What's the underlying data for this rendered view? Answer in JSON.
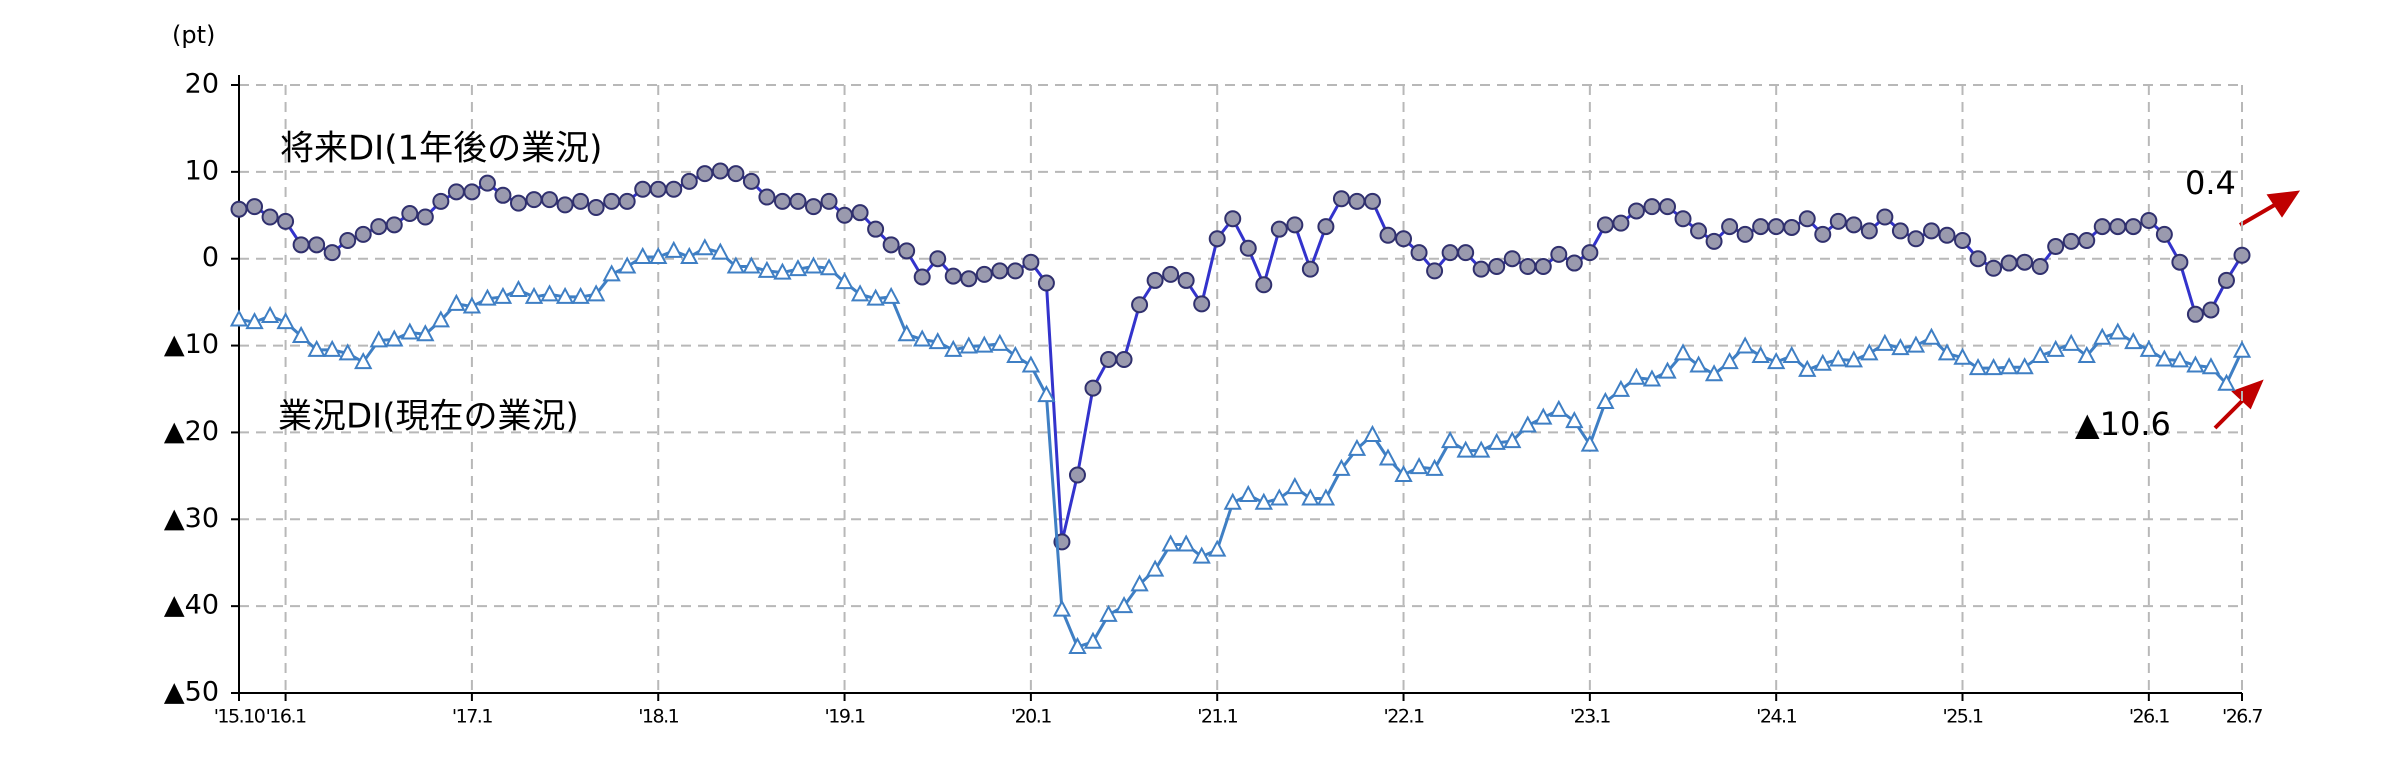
{
  "chart_data": {
    "type": "line",
    "y_unit": "(pt)",
    "categories": [
      "'15.10",
      null,
      null,
      "'16.1",
      null,
      null,
      null,
      null,
      null,
      null,
      null,
      null,
      null,
      null,
      null,
      "'17.1",
      null,
      null,
      null,
      null,
      null,
      null,
      null,
      null,
      null,
      null,
      null,
      "'18.1",
      null,
      null,
      null,
      null,
      null,
      null,
      null,
      null,
      null,
      null,
      null,
      "'19.1",
      null,
      null,
      null,
      null,
      null,
      null,
      null,
      null,
      null,
      null,
      null,
      "'20.1",
      null,
      null,
      null,
      null,
      null,
      null,
      null,
      null,
      null,
      null,
      null,
      "'21.1",
      null,
      null,
      null,
      null,
      null,
      null,
      null,
      null,
      null,
      null,
      null,
      "'22.1",
      null,
      null,
      null,
      null,
      null,
      null,
      null,
      null,
      null,
      null,
      null,
      "'23.1",
      null,
      null,
      null,
      null,
      null,
      null,
      null,
      null,
      null,
      null,
      null,
      "'24.1",
      null,
      null,
      null,
      null,
      null,
      null,
      null,
      null,
      null,
      null,
      null,
      "'25.1",
      null,
      null,
      null,
      null,
      null,
      null,
      null,
      null,
      null,
      null,
      null,
      "'26.1",
      null,
      null,
      null,
      null,
      null,
      "'26.7"
    ],
    "series": [
      {
        "name": "将来DI(1年後の業況)",
        "color": "#3333cc",
        "marker": "circle",
        "marker_fill": "#9a9aae",
        "values": [
          5.7,
          6,
          4.8,
          4.3,
          1.6,
          1.6,
          0.7,
          2.1,
          2.8,
          3.7,
          3.9,
          5.2,
          4.8,
          6.6,
          7.7,
          7.7,
          8.7,
          7.3,
          6.4,
          6.8,
          6.8,
          6.2,
          6.6,
          5.9,
          6.6,
          6.6,
          8,
          8,
          8,
          8.9,
          9.8,
          10.1,
          9.8,
          8.9,
          7.1,
          6.6,
          6.6,
          6,
          6.6,
          5,
          5.3,
          3.4,
          1.6,
          0.9,
          -2.1,
          0,
          -2,
          -2.3,
          -1.8,
          -1.4,
          -1.4,
          -0.4,
          -2.8,
          -32.6,
          -24.9,
          -14.9,
          -11.6,
          -11.6,
          -5.3,
          -2.5,
          -1.8,
          -2.5,
          -5.2,
          2.3,
          4.6,
          1.2,
          -3,
          3.4,
          3.9,
          -1.2,
          3.7,
          6.9,
          6.6,
          6.6,
          2.7,
          2.3,
          0.7,
          -1.4,
          0.7,
          0.7,
          -1.2,
          -0.9,
          0,
          -0.9,
          -0.9,
          0.5,
          -0.5,
          0.7,
          3.9,
          4.1,
          5.5,
          6,
          6,
          4.6,
          3.2,
          2,
          3.7,
          2.8,
          3.7,
          3.7,
          3.6,
          4.6,
          2.8,
          4.3,
          3.9,
          3.2,
          4.8,
          3.2,
          2.3,
          3.2,
          2.7,
          2.1,
          0,
          -1.1,
          -0.5,
          -0.4,
          -0.9,
          1.4,
          2,
          2.1,
          3.7,
          3.7,
          3.7,
          4.4,
          2.8,
          -0.4,
          -6.4,
          -5.9,
          -2.5,
          0.4
        ]
      },
      {
        "name": "業況DI(現在の業況)",
        "color": "#3f7fc4",
        "marker": "triangle",
        "marker_fill": "#ffffff",
        "values": [
          -7,
          -7.3,
          -6.6,
          -7.3,
          -8.9,
          -10.5,
          -10.5,
          -10.9,
          -11.9,
          -9.4,
          -9.3,
          -8.5,
          -8.7,
          -7.1,
          -5.2,
          -5.5,
          -4.6,
          -4.4,
          -3.6,
          -4.4,
          -4.1,
          -4.4,
          -4.4,
          -4.1,
          -1.8,
          -0.9,
          0.2,
          0.2,
          0.9,
          0.2,
          1.2,
          0.7,
          -0.9,
          -0.9,
          -1.4,
          -1.6,
          -1.2,
          -0.9,
          -1.1,
          -2.7,
          -4.1,
          -4.6,
          -4.4,
          -8.7,
          -9.3,
          -9.6,
          -10.5,
          -10.1,
          -10,
          -9.8,
          -11.2,
          -12.3,
          -15.7,
          -40.4,
          -44.7,
          -44.1,
          -41,
          -40,
          -37.5,
          -35.8,
          -32.9,
          -32.9,
          -34.3,
          -33.5,
          -28.1,
          -27.2,
          -28.1,
          -27.6,
          -26.3,
          -27.6,
          -27.6,
          -24.2,
          -21.9,
          -20.3,
          -23,
          -24.9,
          -24,
          -24.2,
          -21,
          -22.1,
          -22.1,
          -21.2,
          -21,
          -19.2,
          -18.3,
          -17.4,
          -18.7,
          -21.4,
          -16.5,
          -15.1,
          -13.7,
          -13.9,
          -13,
          -10.9,
          -12.3,
          -13.3,
          -11.9,
          -10.1,
          -11.2,
          -11.9,
          -11.2,
          -12.8,
          -12.1,
          -11.6,
          -11.7,
          -10.9,
          -9.8,
          -10.3,
          -10,
          -9.1,
          -10.9,
          -11.4,
          -12.6,
          -12.6,
          -12.5,
          -12.5,
          -11.2,
          -10.5,
          -9.8,
          -11.2,
          -9.1,
          -8.5,
          -9.6,
          -10.5,
          -11.6,
          -11.7,
          -12.3,
          -12.5,
          -14.4,
          -10.6
        ]
      }
    ],
    "annotations": [
      "0.4",
      "▲10.6"
    ],
    "ylim": [
      -50,
      20
    ],
    "yticks": [
      20,
      10,
      0,
      {
        "value": -10,
        "label": "▲10"
      },
      {
        "value": -20,
        "label": "▲20"
      },
      {
        "value": -30,
        "label": "▲30"
      },
      {
        "value": -40,
        "label": "▲40"
      },
      {
        "value": -50,
        "label": "▲50"
      }
    ],
    "grid": true
  }
}
